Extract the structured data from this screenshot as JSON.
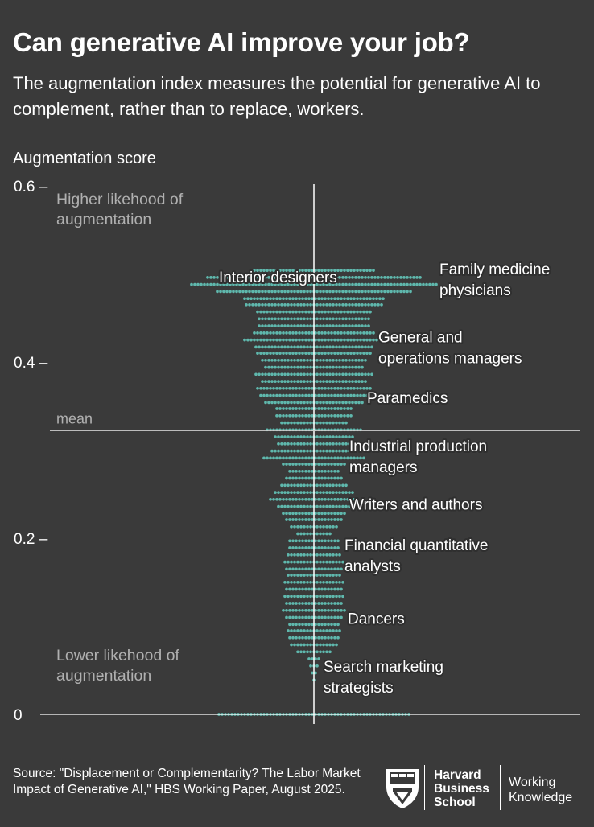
{
  "title": "Can generative AI improve your job?",
  "subtitle": "The augmentation index measures the potential for generative AI to complement, rather than to replace, workers.",
  "chart_data": {
    "type": "scatter",
    "title": "Can generative AI improve your job?",
    "subtitle": "The augmentation index measures the potential for generative AI to complement, rather than to replace, workers.",
    "ylabel": "Augmentation score",
    "ylim": [
      0,
      0.6
    ],
    "yticks": [
      {
        "value": 0.6,
        "label": "0.6 –"
      },
      {
        "value": 0.4,
        "label": "0.4 –"
      },
      {
        "value": 0.2,
        "label": "0.2 –"
      },
      {
        "value": 0,
        "label": "0"
      }
    ],
    "mean_value": 0.322,
    "mean_label": "mean",
    "region_labels": {
      "high": [
        "Higher likehood of",
        "augmentation"
      ],
      "low": [
        "Lower likehood of",
        "augmentation"
      ]
    },
    "distribution": {
      "bin_width": 0.0079,
      "bins": [
        {
          "y": 0.0,
          "count": 60
        },
        {
          "y": 0.039,
          "count": 1
        },
        {
          "y": 0.047,
          "count": 2
        },
        {
          "y": 0.055,
          "count": 3
        },
        {
          "y": 0.063,
          "count": 4
        },
        {
          "y": 0.071,
          "count": 11
        },
        {
          "y": 0.079,
          "count": 15
        },
        {
          "y": 0.087,
          "count": 16
        },
        {
          "y": 0.095,
          "count": 17
        },
        {
          "y": 0.102,
          "count": 16
        },
        {
          "y": 0.11,
          "count": 18
        },
        {
          "y": 0.118,
          "count": 20
        },
        {
          "y": 0.126,
          "count": 18
        },
        {
          "y": 0.134,
          "count": 19
        },
        {
          "y": 0.142,
          "count": 18
        },
        {
          "y": 0.15,
          "count": 19
        },
        {
          "y": 0.158,
          "count": 17
        },
        {
          "y": 0.165,
          "count": 18
        },
        {
          "y": 0.173,
          "count": 19
        },
        {
          "y": 0.181,
          "count": 17
        },
        {
          "y": 0.189,
          "count": 16
        },
        {
          "y": 0.197,
          "count": 16
        },
        {
          "y": 0.205,
          "count": 11
        },
        {
          "y": 0.213,
          "count": 15
        },
        {
          "y": 0.221,
          "count": 18
        },
        {
          "y": 0.228,
          "count": 20
        },
        {
          "y": 0.236,
          "count": 23
        },
        {
          "y": 0.244,
          "count": 28
        },
        {
          "y": 0.252,
          "count": 25
        },
        {
          "y": 0.26,
          "count": 21
        },
        {
          "y": 0.268,
          "count": 18
        },
        {
          "y": 0.276,
          "count": 16
        },
        {
          "y": 0.284,
          "count": 20
        },
        {
          "y": 0.291,
          "count": 32
        },
        {
          "y": 0.299,
          "count": 27
        },
        {
          "y": 0.307,
          "count": 23
        },
        {
          "y": 0.315,
          "count": 25
        },
        {
          "y": 0.323,
          "count": 30
        },
        {
          "y": 0.331,
          "count": 21
        },
        {
          "y": 0.339,
          "count": 24
        },
        {
          "y": 0.347,
          "count": 24
        },
        {
          "y": 0.354,
          "count": 31
        },
        {
          "y": 0.362,
          "count": 34
        },
        {
          "y": 0.37,
          "count": 36
        },
        {
          "y": 0.378,
          "count": 33
        },
        {
          "y": 0.386,
          "count": 37
        },
        {
          "y": 0.394,
          "count": 31
        },
        {
          "y": 0.402,
          "count": 33
        },
        {
          "y": 0.41,
          "count": 36
        },
        {
          "y": 0.417,
          "count": 37
        },
        {
          "y": 0.425,
          "count": 44
        },
        {
          "y": 0.433,
          "count": 38
        },
        {
          "y": 0.441,
          "count": 35
        },
        {
          "y": 0.449,
          "count": 35
        },
        {
          "y": 0.457,
          "count": 36
        },
        {
          "y": 0.465,
          "count": 43
        },
        {
          "y": 0.472,
          "count": 44
        },
        {
          "y": 0.48,
          "count": 61
        },
        {
          "y": 0.488,
          "count": 77
        },
        {
          "y": 0.496,
          "count": 67
        },
        {
          "y": 0.504,
          "count": 38
        }
      ]
    },
    "annotations": [
      {
        "lines": [
          "Interior designers"
        ],
        "y": 0.496,
        "side": "left"
      },
      {
        "lines": [
          "Family medicine",
          "physicians"
        ],
        "y": 0.505,
        "side": "right"
      },
      {
        "lines": [
          "General and",
          "operations managers"
        ],
        "y": 0.428,
        "side": "right"
      },
      {
        "lines": [
          "Paramedics"
        ],
        "y": 0.359,
        "side": "right"
      },
      {
        "lines": [
          "Industrial production",
          "managers"
        ],
        "y": 0.304,
        "side": "right"
      },
      {
        "lines": [
          "Writers and authors"
        ],
        "y": 0.238,
        "side": "right"
      },
      {
        "lines": [
          "Financial quantitative",
          "analysts"
        ],
        "y": 0.192,
        "side": "right"
      },
      {
        "lines": [
          "Dancers"
        ],
        "y": 0.108,
        "side": "right"
      },
      {
        "lines": [
          "Search marketing",
          "strategists"
        ],
        "y": 0.054,
        "side": "right"
      }
    ],
    "colors": {
      "dots": "#5fb8ad",
      "background": "#3a3a3a",
      "text": "#ffffff",
      "muted": "#b0b0b0"
    }
  },
  "footer": {
    "source": "Source: \"Displacement or Complementarity? The Labor Market Impact of Generative AI,\" HBS Working Paper, August 2025.",
    "hbs_lines": [
      "Harvard",
      "Business",
      "School"
    ],
    "wk_lines": [
      "Working",
      "Knowledge"
    ]
  }
}
